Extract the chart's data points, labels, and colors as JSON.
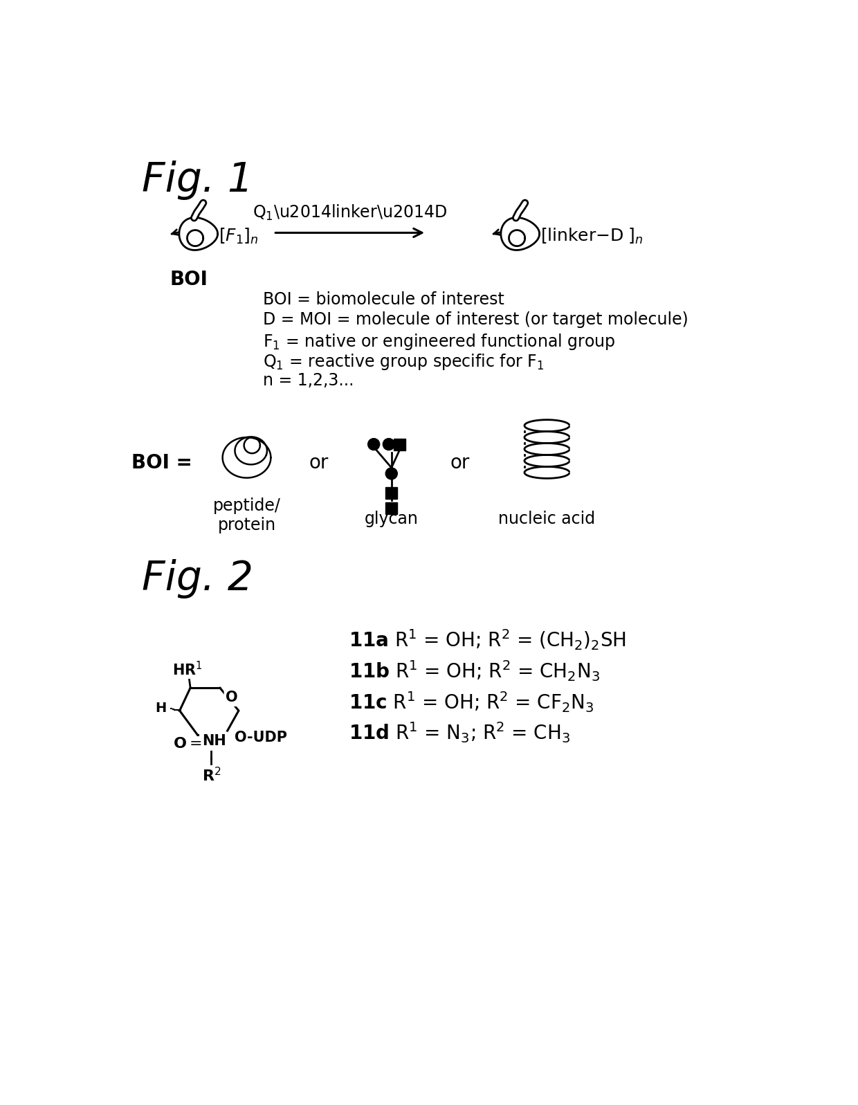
{
  "fig1_title": "Fig. 1",
  "fig2_title": "Fig. 2",
  "background_color": "#ffffff",
  "text_color": "#000000",
  "line_color": "#000000",
  "legend_lines": [
    "BOI = biomolecule of interest",
    "D = MOI = molecule of interest (or target molecule)",
    "F$_1$ = native or engineered functional group",
    "Q$_1$ = reactive group specific for F$_1$",
    "n = 1,2,3..."
  ]
}
